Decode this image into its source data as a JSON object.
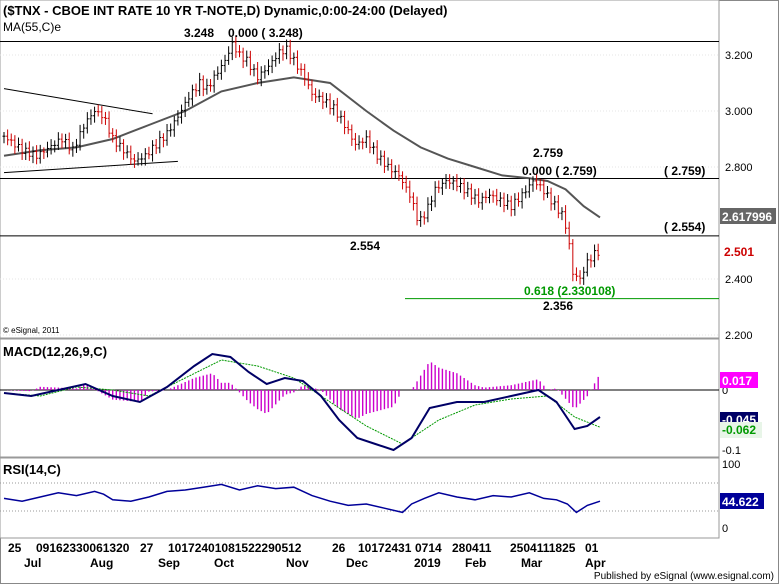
{
  "header": {
    "title": "($TNX - CBOE INT RATE 10 YR T-NOTE,D) Dynamic,0:00-24:00 (Delayed)",
    "ma_label": "MA(55,C)e"
  },
  "footer": {
    "copyright": "© eSignal, 2011",
    "published": "Published by eSignal (www.esignal.com)"
  },
  "chart_data": [
    {
      "type": "candlestick",
      "title": "($TNX - CBOE INT RATE 10 YR T-NOTE,D) Dynamic,0:00-24:00 (Delayed)",
      "ylim": [
        2.2,
        3.28
      ],
      "yticks": [
        "3.200",
        "3.000",
        "2.800",
        "2.400",
        "2.200"
      ],
      "last_price": "2.501",
      "ma_value": "2.617996",
      "up_color": "#000000",
      "down_color": "#cc0000",
      "ma_color": "#555555",
      "close_points": [
        [
          0,
          2.91
        ],
        [
          10,
          2.86
        ],
        [
          18,
          2.84
        ],
        [
          25,
          2.87
        ],
        [
          32,
          2.9
        ],
        [
          38,
          2.86
        ],
        [
          45,
          2.96
        ],
        [
          50,
          3.0
        ],
        [
          55,
          2.98
        ],
        [
          60,
          2.9
        ],
        [
          66,
          2.86
        ],
        [
          72,
          2.82
        ],
        [
          78,
          2.84
        ],
        [
          84,
          2.88
        ],
        [
          90,
          2.92
        ],
        [
          96,
          2.98
        ],
        [
          102,
          3.05
        ],
        [
          108,
          3.1
        ],
        [
          112,
          3.08
        ],
        [
          118,
          3.14
        ],
        [
          122,
          3.18
        ],
        [
          126,
          3.24
        ],
        [
          130,
          3.2
        ],
        [
          134,
          3.18
        ],
        [
          140,
          3.12
        ],
        [
          146,
          3.16
        ],
        [
          152,
          3.21
        ],
        [
          156,
          3.22
        ],
        [
          160,
          3.18
        ],
        [
          166,
          3.12
        ],
        [
          170,
          3.06
        ],
        [
          176,
          3.04
        ],
        [
          182,
          3.01
        ],
        [
          188,
          2.95
        ],
        [
          194,
          2.88
        ],
        [
          200,
          2.9
        ],
        [
          206,
          2.84
        ],
        [
          212,
          2.8
        ],
        [
          218,
          2.77
        ],
        [
          224,
          2.7
        ],
        [
          229,
          2.6
        ],
        [
          233,
          2.64
        ],
        [
          238,
          2.72
        ],
        [
          244,
          2.75
        ],
        [
          250,
          2.74
        ],
        [
          256,
          2.71
        ],
        [
          262,
          2.68
        ],
        [
          268,
          2.7
        ],
        [
          274,
          2.68
        ],
        [
          280,
          2.66
        ],
        [
          286,
          2.7
        ],
        [
          292,
          2.75
        ],
        [
          296,
          2.73
        ],
        [
          302,
          2.68
        ],
        [
          308,
          2.63
        ],
        [
          311,
          2.57
        ],
        [
          314,
          2.42
        ],
        [
          318,
          2.4
        ],
        [
          322,
          2.46
        ],
        [
          326,
          2.49
        ],
        [
          329,
          2.5
        ]
      ],
      "ma_points": [
        [
          0,
          2.84
        ],
        [
          20,
          2.86
        ],
        [
          40,
          2.87
        ],
        [
          60,
          2.9
        ],
        [
          80,
          2.95
        ],
        [
          100,
          3.0
        ],
        [
          120,
          3.07
        ],
        [
          140,
          3.1
        ],
        [
          160,
          3.12
        ],
        [
          180,
          3.1
        ],
        [
          200,
          3.0
        ],
        [
          215,
          2.93
        ],
        [
          230,
          2.87
        ],
        [
          245,
          2.83
        ],
        [
          260,
          2.8
        ],
        [
          275,
          2.77
        ],
        [
          290,
          2.76
        ],
        [
          300,
          2.75
        ],
        [
          310,
          2.72
        ],
        [
          320,
          2.66
        ],
        [
          329,
          2.62
        ]
      ],
      "horizontal_lines": [
        {
          "value": 3.248,
          "label": "3.248",
          "label2": "0.000 ( 3.248)"
        },
        {
          "value": 2.759,
          "label": "2.759",
          "label2": "0.000 ( 2.759)",
          "label3": "( 2.759)"
        },
        {
          "value": 2.554,
          "label": "2.554",
          "label3": "( 2.554)"
        },
        {
          "value": 2.3301,
          "label": "0.618 (2.330108)",
          "color": "#009900"
        }
      ],
      "annotations": [
        "2.356"
      ],
      "trendlines": [
        {
          "from": [
            0,
            3.08
          ],
          "to": [
            82,
            2.99
          ]
        },
        {
          "from": [
            0,
            2.78
          ],
          "to": [
            96,
            2.82
          ]
        }
      ]
    },
    {
      "type": "line",
      "title": "MACD(12,26,9,C)",
      "yticks": [
        "0",
        "-0.1"
      ],
      "macd_value": "-0.045",
      "signal_value": "-0.062",
      "histogram_value": "0.017",
      "macd_color": "#000066",
      "signal_color": "#009900",
      "hist_color": "#cc00cc",
      "macd_points": [
        [
          0,
          -0.005
        ],
        [
          15,
          -0.01
        ],
        [
          30,
          0.0
        ],
        [
          45,
          0.01
        ],
        [
          60,
          -0.01
        ],
        [
          75,
          -0.02
        ],
        [
          90,
          0.005
        ],
        [
          105,
          0.04
        ],
        [
          115,
          0.06
        ],
        [
          125,
          0.055
        ],
        [
          135,
          0.03
        ],
        [
          145,
          0.01
        ],
        [
          155,
          0.02
        ],
        [
          165,
          0.015
        ],
        [
          175,
          -0.01
        ],
        [
          185,
          -0.05
        ],
        [
          195,
          -0.08
        ],
        [
          205,
          -0.09
        ],
        [
          215,
          -0.1
        ],
        [
          225,
          -0.08
        ],
        [
          235,
          -0.03
        ],
        [
          250,
          -0.02
        ],
        [
          265,
          -0.02
        ],
        [
          280,
          -0.01
        ],
        [
          295,
          0.0
        ],
        [
          305,
          -0.02
        ],
        [
          315,
          -0.065
        ],
        [
          322,
          -0.06
        ],
        [
          329,
          -0.045
        ]
      ],
      "signal_points": [
        [
          0,
          -0.005
        ],
        [
          20,
          -0.01
        ],
        [
          40,
          0.005
        ],
        [
          60,
          0.0
        ],
        [
          80,
          -0.01
        ],
        [
          100,
          0.02
        ],
        [
          120,
          0.05
        ],
        [
          140,
          0.04
        ],
        [
          160,
          0.02
        ],
        [
          180,
          -0.02
        ],
        [
          200,
          -0.06
        ],
        [
          220,
          -0.09
        ],
        [
          240,
          -0.05
        ],
        [
          260,
          -0.025
        ],
        [
          280,
          -0.015
        ],
        [
          300,
          -0.01
        ],
        [
          315,
          -0.045
        ],
        [
          329,
          -0.062
        ]
      ]
    },
    {
      "type": "line",
      "title": "RSI(14,C)",
      "yticks": [
        "100",
        "50",
        "0"
      ],
      "rsi_value": "44.622",
      "rsi_color": "#000099",
      "rsi_points": [
        [
          0,
          48
        ],
        [
          10,
          44
        ],
        [
          20,
          50
        ],
        [
          30,
          56
        ],
        [
          40,
          52
        ],
        [
          50,
          58
        ],
        [
          55,
          54
        ],
        [
          60,
          46
        ],
        [
          70,
          44
        ],
        [
          80,
          50
        ],
        [
          90,
          58
        ],
        [
          100,
          60
        ],
        [
          110,
          64
        ],
        [
          120,
          68
        ],
        [
          130,
          60
        ],
        [
          140,
          66
        ],
        [
          150,
          62
        ],
        [
          160,
          64
        ],
        [
          170,
          52
        ],
        [
          180,
          44
        ],
        [
          190,
          38
        ],
        [
          200,
          40
        ],
        [
          210,
          34
        ],
        [
          220,
          28
        ],
        [
          225,
          40
        ],
        [
          232,
          48
        ],
        [
          240,
          56
        ],
        [
          250,
          50
        ],
        [
          260,
          46
        ],
        [
          270,
          52
        ],
        [
          280,
          50
        ],
        [
          290,
          56
        ],
        [
          298,
          48
        ],
        [
          305,
          46
        ],
        [
          311,
          40
        ],
        [
          316,
          28
        ],
        [
          322,
          38
        ],
        [
          329,
          44
        ]
      ]
    }
  ],
  "x_axis": {
    "day_labels": [
      "25",
      "09162330061320",
      "27",
      "10172401081522290512",
      "26",
      "10172431",
      "0714",
      "280411",
      "2504111825",
      "01"
    ],
    "month_labels": [
      "Jul",
      "Aug",
      "Sep",
      "Oct",
      "Nov",
      "Dec",
      "2019",
      "Feb",
      "Mar",
      "Apr"
    ]
  }
}
